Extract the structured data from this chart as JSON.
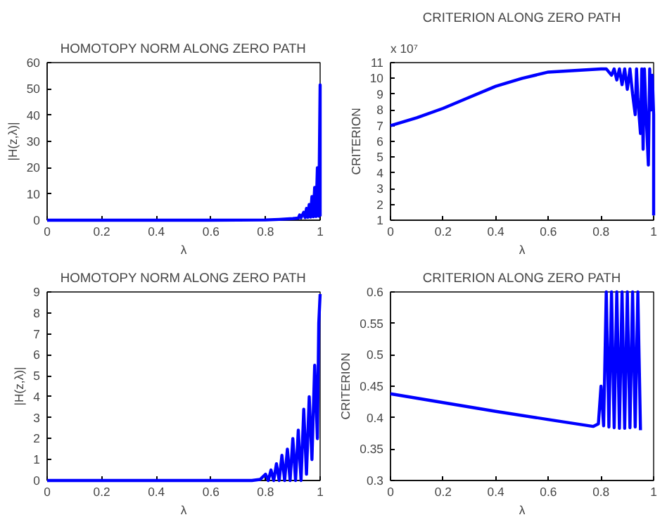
{
  "chart_data": [
    {
      "type": "line",
      "title": "HOMOTOPY NORM ALONG ZERO PATH",
      "xlabel": "λ",
      "ylabel": "|H(z,λ)|",
      "xlim": [
        0,
        1
      ],
      "ylim": [
        0,
        60
      ],
      "xticks": [
        0,
        0.2,
        0.4,
        0.6,
        0.8,
        1
      ],
      "yticks": [
        0,
        10,
        20,
        30,
        40,
        50,
        60
      ],
      "grid": false,
      "series": [
        {
          "color": "#0000ff",
          "x": [
            0,
            0.2,
            0.4,
            0.6,
            0.8,
            0.85,
            0.9,
            0.92,
            0.925,
            0.93,
            0.94,
            0.945,
            0.95,
            0.955,
            0.96,
            0.965,
            0.97,
            0.975,
            0.98,
            0.985,
            0.99,
            0.995,
            1.0,
            1.0
          ],
          "values": [
            0,
            0,
            0,
            0,
            0.1,
            0.3,
            0.6,
            0.8,
            2,
            0.9,
            3,
            1.0,
            4.5,
            1.1,
            6,
            1.2,
            9,
            1.3,
            12.5,
            1.4,
            20,
            1.5,
            51.5,
            1.5
          ]
        }
      ]
    },
    {
      "type": "line",
      "title": "CRITERION ALONG ZERO PATH",
      "xlabel": "λ",
      "ylabel": "CRITERION",
      "annotations": [
        "x 10⁷"
      ],
      "xlim": [
        0,
        1
      ],
      "ylim": [
        1,
        11
      ],
      "xticks": [
        0,
        0.2,
        0.4,
        0.6,
        0.8,
        1
      ],
      "yticks": [
        1,
        2,
        3,
        4,
        5,
        6,
        7,
        8,
        9,
        10,
        11
      ],
      "grid": false,
      "series": [
        {
          "color": "#0000ff",
          "x": [
            0,
            0.1,
            0.2,
            0.3,
            0.4,
            0.5,
            0.6,
            0.7,
            0.8,
            0.82,
            0.84,
            0.85,
            0.86,
            0.87,
            0.88,
            0.89,
            0.9,
            0.91,
            0.92,
            0.93,
            0.935,
            0.94,
            0.95,
            0.955,
            0.96,
            0.965,
            0.97,
            0.98,
            0.985,
            0.99,
            0.995,
            1.0,
            1.0
          ],
          "values": [
            7.0,
            7.5,
            8.1,
            8.8,
            9.5,
            10.0,
            10.4,
            10.5,
            10.6,
            10.6,
            10.2,
            10.6,
            9.9,
            10.6,
            9.6,
            10.6,
            9.3,
            10.6,
            9.0,
            7.7,
            10.6,
            8.7,
            6.5,
            10.6,
            5.5,
            10.6,
            8.3,
            4.5,
            10.6,
            8.0,
            10.2,
            7.7,
            1.3
          ]
        }
      ]
    },
    {
      "type": "line",
      "title": "HOMOTOPY NORM ALONG ZERO PATH",
      "xlabel": "λ",
      "ylabel": "|H(z,λ)|",
      "xlim": [
        0,
        1
      ],
      "ylim": [
        0,
        9
      ],
      "xticks": [
        0,
        0.2,
        0.4,
        0.6,
        0.8,
        1
      ],
      "yticks": [
        0,
        1,
        2,
        3,
        4,
        5,
        6,
        7,
        8,
        9
      ],
      "grid": false,
      "series": [
        {
          "color": "#0000ff",
          "x": [
            0,
            0.2,
            0.4,
            0.6,
            0.75,
            0.78,
            0.8,
            0.81,
            0.82,
            0.83,
            0.84,
            0.85,
            0.86,
            0.87,
            0.88,
            0.89,
            0.9,
            0.91,
            0.92,
            0.93,
            0.94,
            0.95,
            0.96,
            0.97,
            0.98,
            0.99,
            0.995,
            1.0
          ],
          "values": [
            0,
            0,
            0,
            0,
            0,
            0.05,
            0.3,
            0,
            0.5,
            0,
            0.8,
            0,
            1.2,
            0,
            1.5,
            0,
            2.0,
            0,
            2.4,
            0,
            3.4,
            0.3,
            4.0,
            1.0,
            5.5,
            2.0,
            7.5,
            8.9
          ]
        }
      ]
    },
    {
      "type": "line",
      "title": "CRITERION ALONG ZERO PATH",
      "xlabel": "λ",
      "ylabel": "CRITERION",
      "xlim": [
        0,
        1
      ],
      "ylim": [
        0.3,
        0.6
      ],
      "xticks": [
        0,
        0.2,
        0.4,
        0.6,
        0.8,
        1
      ],
      "yticks": [
        0.3,
        0.35,
        0.4,
        0.45,
        0.5,
        0.55,
        0.6
      ],
      "grid": false,
      "series": [
        {
          "color": "#0000ff",
          "x": [
            0,
            0.2,
            0.4,
            0.6,
            0.77,
            0.79,
            0.8,
            0.81,
            0.82,
            0.83,
            0.84,
            0.85,
            0.86,
            0.87,
            0.88,
            0.89,
            0.9,
            0.91,
            0.92,
            0.93,
            0.94,
            0.95
          ],
          "values": [
            0.438,
            0.424,
            0.41,
            0.397,
            0.386,
            0.39,
            0.45,
            0.387,
            0.6,
            0.385,
            0.6,
            0.384,
            0.6,
            0.383,
            0.6,
            0.383,
            0.6,
            0.384,
            0.6,
            0.385,
            0.6,
            0.38
          ]
        }
      ]
    }
  ]
}
